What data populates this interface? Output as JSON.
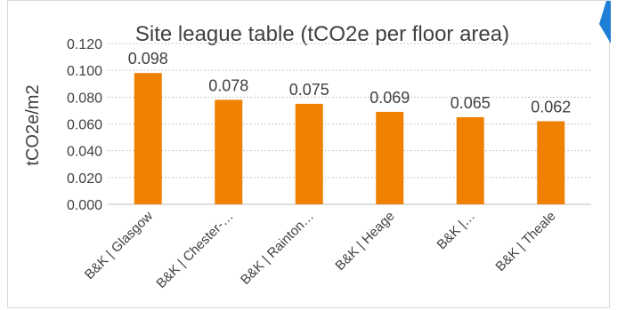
{
  "chart_data": {
    "type": "bar",
    "title": "Site league table (tCO2e per floor area)",
    "ylabel": "tCO2e/m2",
    "xlabel": "",
    "categories": [
      "B&K | Glasgow",
      "B&K | Chester-…",
      "B&K | Rainton…",
      "B&K | Heage",
      "B&K |…",
      "B&K | Theale"
    ],
    "values": [
      0.098,
      0.078,
      0.075,
      0.069,
      0.065,
      0.062
    ],
    "value_labels": [
      "0.098",
      "0.078",
      "0.075",
      "0.069",
      "0.065",
      "0.062"
    ],
    "ylim": [
      0,
      0.12
    ],
    "yticks": [
      0.0,
      0.02,
      0.04,
      0.06,
      0.08,
      0.1,
      0.12
    ],
    "ytick_labels": [
      "0.000",
      "0.020",
      "0.040",
      "0.060",
      "0.080",
      "0.100",
      "0.120"
    ],
    "grid": "horizontal-dotted",
    "legend": "none",
    "bar_color": "#f08000",
    "accent_color": "#1f7fd6"
  }
}
